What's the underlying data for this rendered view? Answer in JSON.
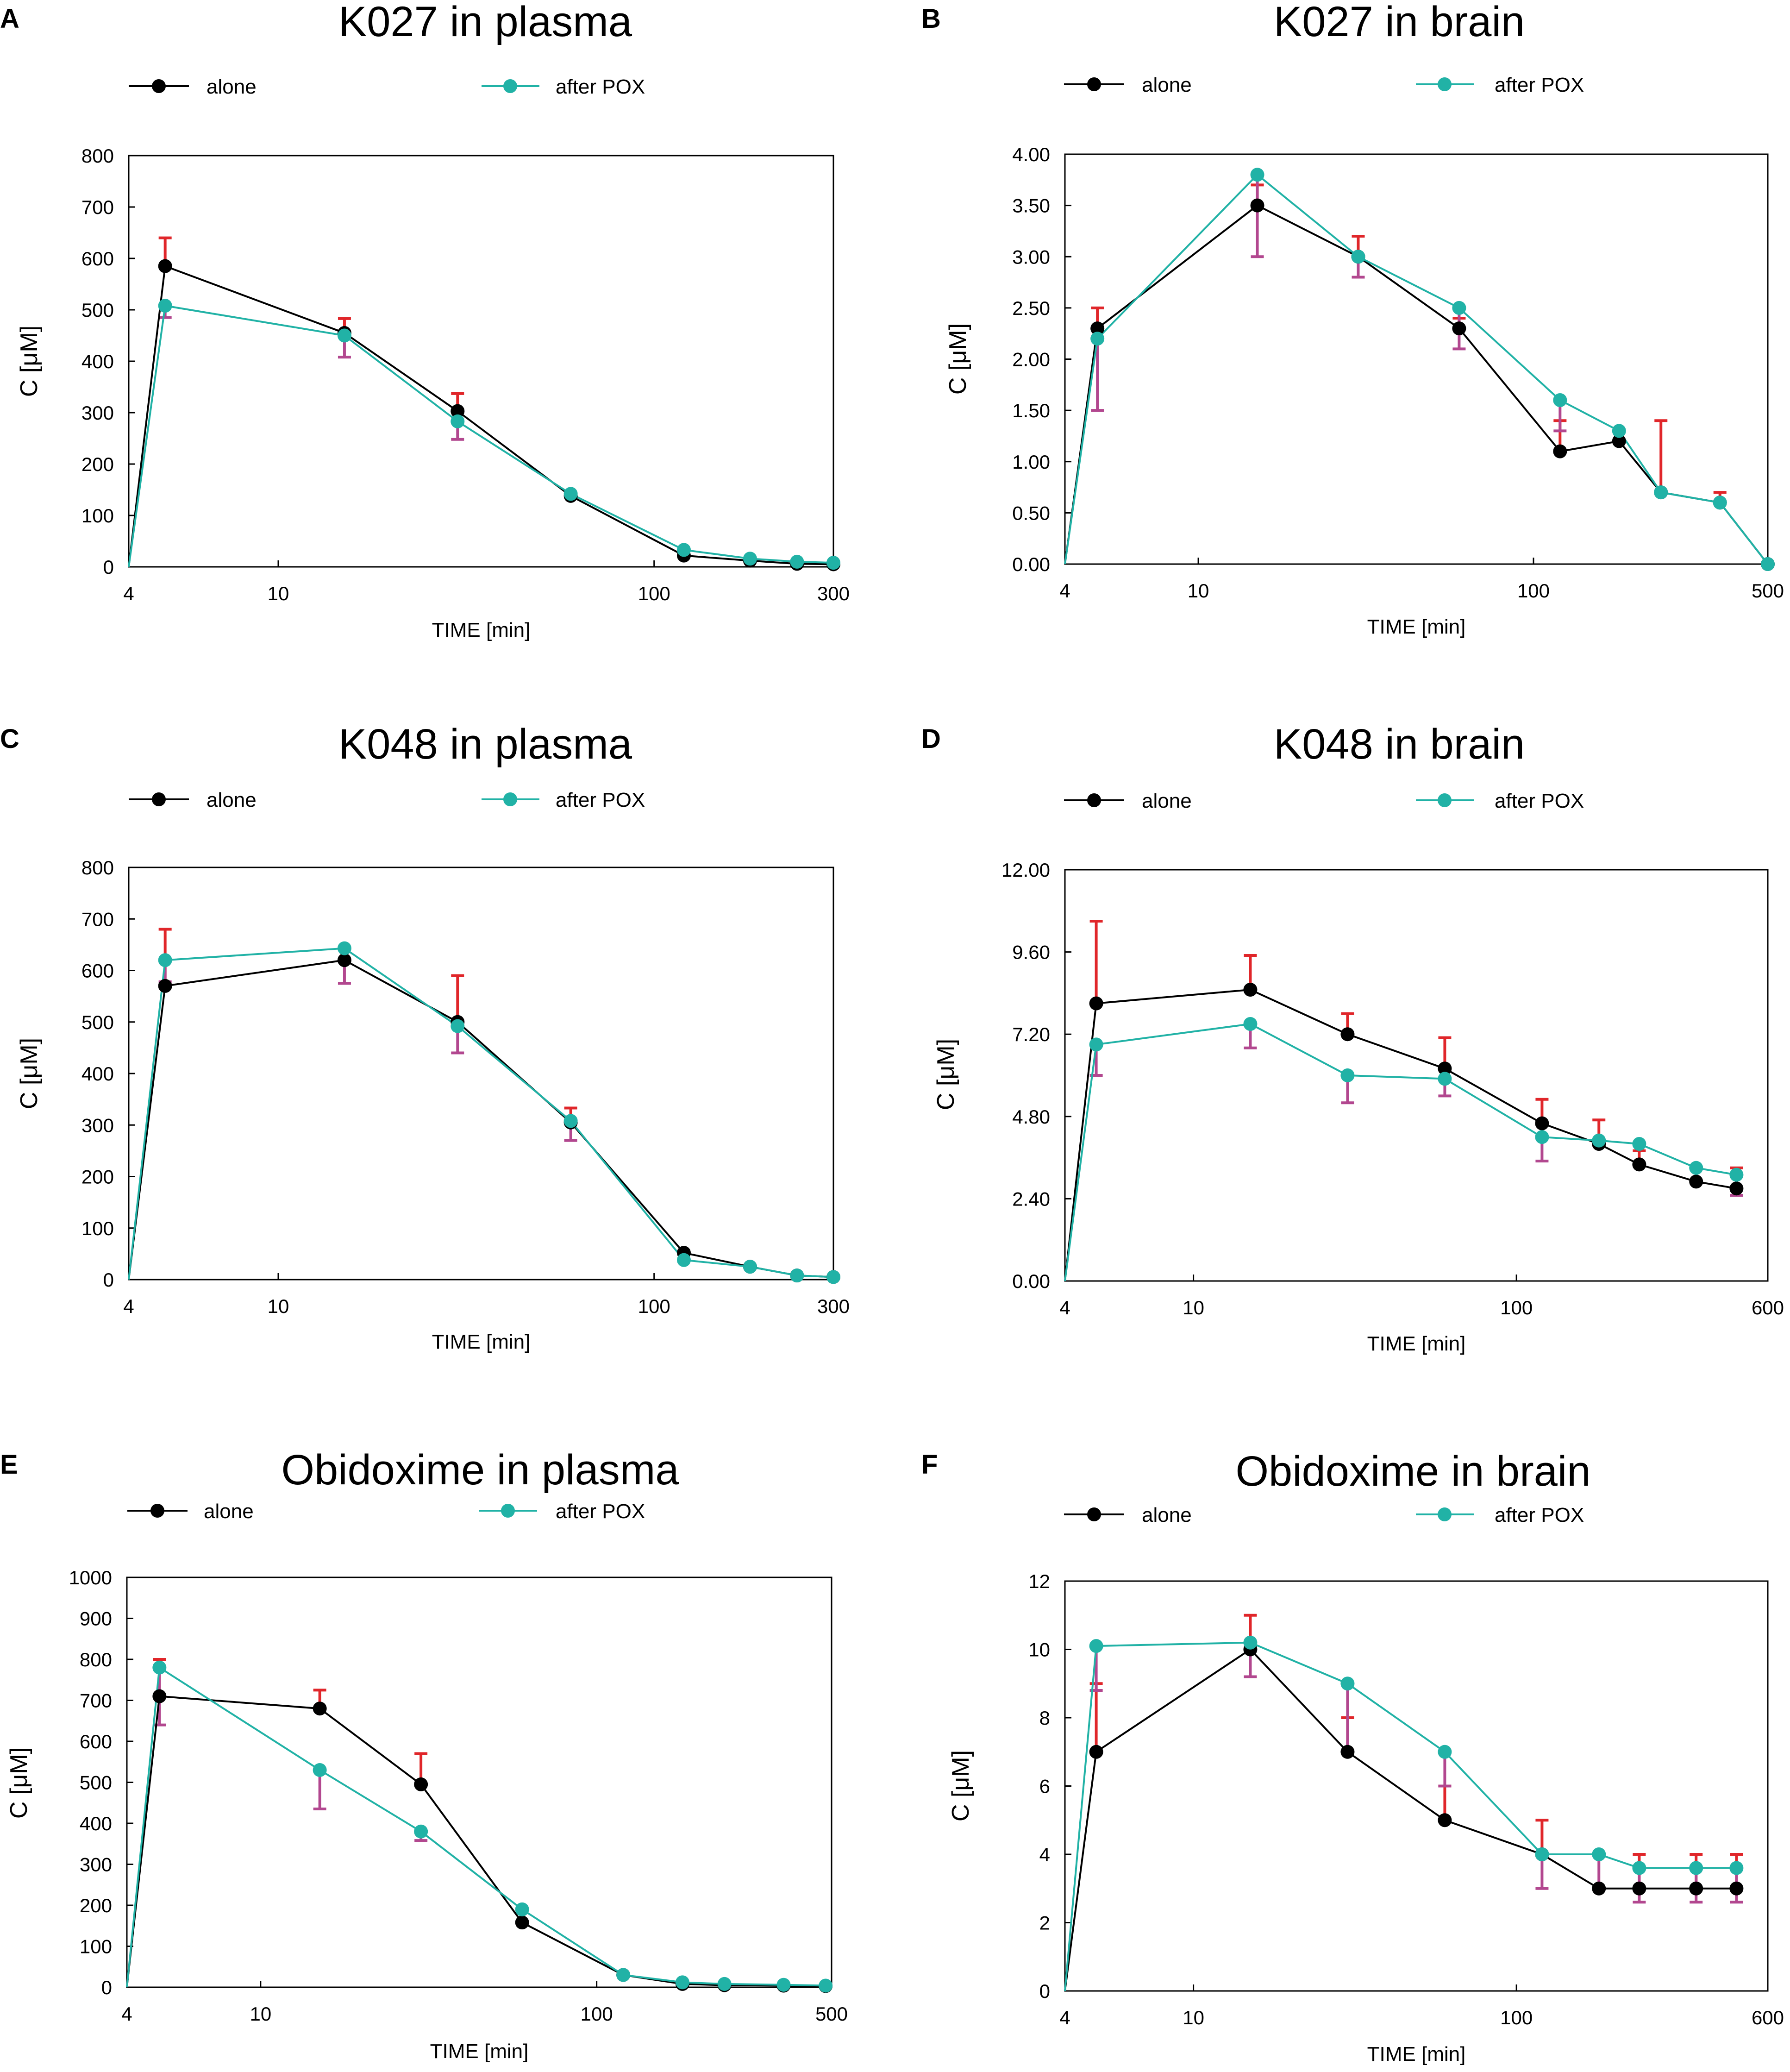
{
  "figure": {
    "colors": {
      "alone": "#000000",
      "after_pox": "#21b2a6",
      "err_alone": "#e0262a",
      "err_pox": "#b2478f"
    }
  },
  "chart_data": [
    {
      "id": "A",
      "panel_letter": "A",
      "type": "line",
      "title": "K027 in plasma",
      "xlabel": "TIME [min]",
      "ylabel": "C [μM]",
      "xscale": "log",
      "xlim": [
        4,
        300
      ],
      "x_ticks": [
        4,
        10,
        100,
        300
      ],
      "x_tick_labels": [
        "4",
        "10",
        "100",
        "300"
      ],
      "ylim": [
        0,
        800
      ],
      "y_ticks": [
        0,
        100,
        200,
        300,
        400,
        500,
        600,
        700,
        800
      ],
      "y_tick_labels": [
        "0",
        "100",
        "200",
        "300",
        "400",
        "500",
        "600",
        "700",
        "800"
      ],
      "legend": [
        "alone",
        "after POX"
      ],
      "series": [
        {
          "name": "alone",
          "x": [
            5,
            15,
            30,
            60,
            120,
            180,
            240,
            300
          ],
          "y": [
            585,
            455,
            303,
            138,
            22,
            12,
            6,
            5
          ],
          "err_up": [
            640,
            483,
            337,
            null,
            null,
            null,
            null,
            null
          ]
        },
        {
          "name": "after POX",
          "x": [
            5,
            15,
            30,
            60,
            120,
            180,
            240,
            300
          ],
          "y": [
            508,
            450,
            283,
            142,
            33,
            16,
            10,
            8
          ],
          "err_down": [
            485,
            408,
            248,
            null,
            null,
            null,
            null,
            null
          ]
        }
      ]
    },
    {
      "id": "B",
      "panel_letter": "B",
      "type": "line",
      "title": "K027 in brain",
      "xlabel": "TIME [min]",
      "ylabel": "C [μM]",
      "xscale": "log",
      "xlim": [
        4,
        500
      ],
      "x_ticks": [
        4,
        10,
        100,
        500
      ],
      "x_tick_labels": [
        "4",
        "10",
        "100",
        "500"
      ],
      "ylim": [
        0,
        4
      ],
      "y_ticks": [
        0,
        0.5,
        1,
        1.5,
        2,
        2.5,
        3,
        3.5,
        4
      ],
      "y_tick_labels": [
        "0.00",
        "0.50",
        "1.00",
        "1.50",
        "2.00",
        "2.50",
        "3.00",
        "3.50",
        "4.00"
      ],
      "legend": [
        "alone",
        "after POX"
      ],
      "series": [
        {
          "name": "alone",
          "x": [
            5,
            15,
            30,
            60,
            120,
            180,
            240,
            360,
            500
          ],
          "y": [
            2.3,
            3.5,
            3.0,
            2.3,
            1.1,
            1.2,
            0.7,
            0.6,
            0.0
          ],
          "err_up": [
            2.5,
            3.7,
            3.2,
            2.4,
            1.4,
            null,
            1.4,
            0.7,
            null
          ]
        },
        {
          "name": "after POX",
          "x": [
            5,
            15,
            30,
            60,
            120,
            180,
            240,
            360,
            500
          ],
          "y": [
            2.2,
            3.8,
            3.0,
            2.5,
            1.6,
            1.3,
            0.7,
            0.6,
            0.0
          ],
          "err_down": [
            1.5,
            3.0,
            2.8,
            2.1,
            1.3,
            null,
            null,
            null,
            null
          ]
        }
      ]
    },
    {
      "id": "C",
      "panel_letter": "C",
      "type": "line",
      "title": "K048 in plasma",
      "xlabel": "TIME [min]",
      "ylabel": "C [μM]",
      "xscale": "log",
      "xlim": [
        4,
        300
      ],
      "x_ticks": [
        4,
        10,
        100,
        300
      ],
      "x_tick_labels": [
        "4",
        "10",
        "100",
        "300"
      ],
      "ylim": [
        0,
        800
      ],
      "y_ticks": [
        0,
        100,
        200,
        300,
        400,
        500,
        600,
        700,
        800
      ],
      "y_tick_labels": [
        "0",
        "100",
        "200",
        "300",
        "400",
        "500",
        "600",
        "700",
        "800"
      ],
      "legend": [
        "alone",
        "after POX"
      ],
      "series": [
        {
          "name": "alone",
          "x": [
            5,
            15,
            30,
            60,
            120,
            180,
            240,
            300
          ],
          "y": [
            570,
            620,
            500,
            305,
            52,
            25,
            8,
            5
          ],
          "err_up": [
            680,
            645,
            590,
            333,
            null,
            null,
            null,
            null
          ]
        },
        {
          "name": "after POX",
          "x": [
            5,
            15,
            30,
            60,
            120,
            180,
            240,
            300
          ],
          "y": [
            620,
            643,
            492,
            308,
            38,
            25,
            8,
            5
          ],
          "err_down": [
            578,
            575,
            440,
            270,
            null,
            null,
            null,
            null
          ]
        }
      ]
    },
    {
      "id": "D",
      "panel_letter": "D",
      "type": "line",
      "title": "K048 in brain",
      "xlabel": "TIME [min]",
      "ylabel": "C [μM]",
      "xscale": "log",
      "xlim": [
        4,
        600
      ],
      "x_ticks": [
        4,
        10,
        100,
        600
      ],
      "x_tick_labels": [
        "4",
        "10",
        "100",
        "600"
      ],
      "ylim": [
        0,
        12
      ],
      "y_ticks": [
        0,
        2.4,
        4.8,
        7.2,
        9.6,
        12
      ],
      "y_tick_labels": [
        "0.00",
        "2.40",
        "4.80",
        "7.20",
        "9.60",
        "12.00"
      ],
      "legend": [
        "alone",
        "after POX"
      ],
      "series": [
        {
          "name": "alone",
          "x": [
            5,
            15,
            30,
            60,
            120,
            180,
            240,
            360,
            480
          ],
          "y": [
            8.1,
            8.5,
            7.2,
            6.2,
            4.6,
            4.0,
            3.4,
            2.9,
            2.7
          ],
          "err_up": [
            10.5,
            9.5,
            7.8,
            7.1,
            5.3,
            4.7,
            3.8,
            null,
            3.3
          ]
        },
        {
          "name": "after POX",
          "x": [
            5,
            15,
            30,
            60,
            120,
            180,
            240,
            360,
            480
          ],
          "y": [
            6.9,
            7.5,
            6.0,
            5.9,
            4.2,
            4.1,
            4.0,
            3.3,
            3.1
          ],
          "err_down": [
            6.0,
            6.8,
            5.2,
            5.4,
            3.5,
            null,
            null,
            null,
            2.5
          ]
        }
      ]
    },
    {
      "id": "E",
      "panel_letter": "E",
      "type": "line",
      "title": "Obidoxime in plasma",
      "xlabel": "TIME [min]",
      "ylabel": "C [μM]",
      "xscale": "log",
      "xlim": [
        4,
        500
      ],
      "x_ticks": [
        4,
        10,
        100,
        500
      ],
      "x_tick_labels": [
        "4",
        "10",
        "100",
        "500"
      ],
      "ylim": [
        0,
        1000
      ],
      "y_ticks": [
        0,
        100,
        200,
        300,
        400,
        500,
        600,
        700,
        800,
        900,
        1000
      ],
      "y_tick_labels": [
        "0",
        "100",
        "200",
        "300",
        "400",
        "500",
        "600",
        "700",
        "800",
        "900",
        "1000"
      ],
      "legend": [
        "alone",
        "after POX"
      ],
      "series": [
        {
          "name": "alone",
          "x": [
            5,
            15,
            30,
            60,
            120,
            180,
            240,
            360,
            480
          ],
          "y": [
            710,
            680,
            495,
            158,
            30,
            8,
            5,
            4,
            3
          ],
          "err_up": [
            800,
            725,
            570,
            null,
            null,
            null,
            null,
            null,
            null
          ]
        },
        {
          "name": "after POX",
          "x": [
            5,
            15,
            30,
            60,
            120,
            180,
            240,
            360,
            480
          ],
          "y": [
            780,
            530,
            380,
            190,
            30,
            12,
            8,
            6,
            4
          ],
          "err_down": [
            640,
            435,
            358,
            155,
            null,
            null,
            null,
            null,
            null
          ]
        }
      ]
    },
    {
      "id": "F",
      "panel_letter": "F",
      "type": "line",
      "title": "Obidoxime in brain",
      "xlabel": "TIME [min]",
      "ylabel": "C [μM]",
      "xscale": "log",
      "xlim": [
        4,
        600
      ],
      "x_ticks": [
        4,
        10,
        100,
        600
      ],
      "x_tick_labels": [
        "4",
        "10",
        "100",
        "600"
      ],
      "ylim": [
        0,
        12
      ],
      "y_ticks": [
        0,
        2,
        4,
        6,
        8,
        10,
        12
      ],
      "y_tick_labels": [
        "0",
        "2",
        "4",
        "6",
        "8",
        "10",
        "12"
      ],
      "legend": [
        "alone",
        "after POX"
      ],
      "series": [
        {
          "name": "alone",
          "x": [
            5,
            15,
            30,
            60,
            120,
            180,
            240,
            360,
            480
          ],
          "y": [
            7.0,
            10.0,
            7.0,
            5.0,
            4.0,
            3.0,
            3.0,
            3.0,
            3.0
          ],
          "err_up": [
            9.0,
            11.0,
            8.0,
            6.0,
            5.0,
            null,
            4.0,
            4.0,
            4.0
          ]
        },
        {
          "name": "after POX",
          "x": [
            5,
            15,
            30,
            60,
            120,
            180,
            240,
            360,
            480
          ],
          "y": [
            10.1,
            10.2,
            9.0,
            7.0,
            4.0,
            4.0,
            3.6,
            3.6,
            3.6
          ],
          "err_down": [
            8.8,
            9.2,
            7.0,
            6.0,
            3.0,
            3.0,
            2.6,
            2.6,
            2.6
          ]
        }
      ]
    }
  ]
}
